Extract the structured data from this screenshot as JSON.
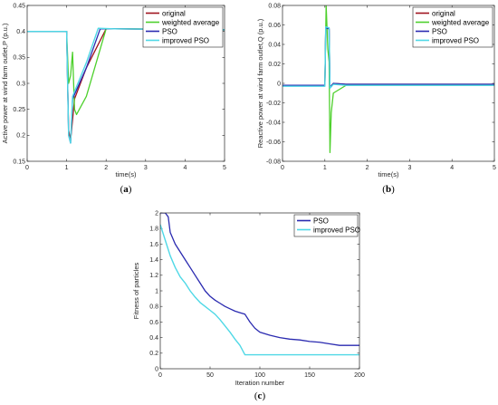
{
  "chart_data": [
    {
      "type": "line",
      "panel_label": "a",
      "xlabel": "time(s)",
      "ylabel": "Active power at wind farm outlet,P (p.u.)",
      "xlim": [
        0,
        5
      ],
      "ylim": [
        0.15,
        0.45
      ],
      "xticks": [
        "0",
        "1",
        "2",
        "3",
        "4",
        "5"
      ],
      "yticks": [
        "0.15",
        "0.2",
        "0.25",
        "0.3",
        "0.35",
        "0.4",
        "0.45"
      ],
      "legend_position": "top-right",
      "series": [
        {
          "name": "original",
          "color": "#a0141e",
          "x": [
            0,
            1.0,
            1.05,
            1.1,
            1.2,
            1.5,
            2.0,
            2.2,
            5
          ],
          "y": [
            0.4,
            0.4,
            0.21,
            0.19,
            0.27,
            0.33,
            0.405,
            0.405,
            0.403
          ]
        },
        {
          "name": "weighted average",
          "color": "#4dd02c",
          "x": [
            0,
            1.0,
            1.05,
            1.1,
            1.15,
            1.2,
            1.25,
            1.5,
            2.0,
            2.5,
            5
          ],
          "y": [
            0.4,
            0.4,
            0.3,
            0.315,
            0.36,
            0.25,
            0.24,
            0.275,
            0.405,
            0.405,
            0.403
          ]
        },
        {
          "name": "PSO",
          "color": "#2a2ab0",
          "x": [
            0,
            1.0,
            1.05,
            1.1,
            1.15,
            1.5,
            1.85,
            2.2,
            5
          ],
          "y": [
            0.4,
            0.4,
            0.2,
            0.185,
            0.27,
            0.33,
            0.405,
            0.405,
            0.403
          ]
        },
        {
          "name": "improved PSO",
          "color": "#4fd8e6",
          "x": [
            0,
            1.0,
            1.05,
            1.1,
            1.15,
            1.5,
            1.8,
            2.2,
            5
          ],
          "y": [
            0.4,
            0.4,
            0.2,
            0.185,
            0.275,
            0.34,
            0.406,
            0.405,
            0.403
          ]
        }
      ]
    },
    {
      "type": "line",
      "panel_label": "b",
      "xlabel": "time(s)",
      "ylabel": "Reactive power at wind farm outlet,Q (p.u.)",
      "xlim": [
        0,
        5
      ],
      "ylim": [
        -0.08,
        0.08
      ],
      "xticks": [
        "0",
        "1",
        "2",
        "3",
        "4",
        "5"
      ],
      "yticks": [
        "-0.08",
        "-0.06",
        "-0.04",
        "-0.02",
        "0",
        "0.02",
        "0.04",
        "0.06",
        "0.08"
      ],
      "legend_position": "top-right",
      "series": [
        {
          "name": "original",
          "color": "#a0141e",
          "x": [
            0,
            1.0,
            1.02,
            1.1,
            1.12,
            1.2,
            1.5,
            5
          ],
          "y": [
            -0.002,
            -0.002,
            0.057,
            0.056,
            -0.004,
            0.0,
            -0.001,
            -0.001
          ]
        },
        {
          "name": "weighted average",
          "color": "#4dd02c",
          "x": [
            0,
            1.0,
            1.03,
            1.07,
            1.1,
            1.12,
            1.15,
            1.2,
            1.5,
            5
          ],
          "y": [
            -0.002,
            -0.002,
            0.08,
            0.035,
            0.022,
            -0.071,
            -0.03,
            -0.01,
            -0.002,
            -0.002
          ]
        },
        {
          "name": "PSO",
          "color": "#2a2ab0",
          "x": [
            0,
            1.0,
            1.02,
            1.1,
            1.12,
            1.2,
            1.5,
            5
          ],
          "y": [
            -0.002,
            -0.002,
            0.057,
            0.056,
            -0.004,
            0.0,
            -0.001,
            -0.001
          ]
        },
        {
          "name": "improved PSO",
          "color": "#4fd8e6",
          "x": [
            0,
            1.0,
            1.02,
            1.1,
            1.12,
            1.2,
            1.5,
            5
          ],
          "y": [
            -0.003,
            -0.003,
            0.058,
            0.057,
            -0.005,
            -0.001,
            -0.002,
            -0.002
          ]
        }
      ]
    },
    {
      "type": "line",
      "panel_label": "c",
      "xlabel": "Iteration number",
      "ylabel": "Fitness of particles",
      "xlim": [
        0,
        200
      ],
      "ylim": [
        0,
        2
      ],
      "xticks": [
        "0",
        "50",
        "100",
        "150",
        "200"
      ],
      "yticks": [
        "0",
        "0.2",
        "0.4",
        "0.6",
        "0.8",
        "1",
        "1.2",
        "1.4",
        "1.6",
        "1.8",
        "2"
      ],
      "legend_position": "top-right",
      "series": [
        {
          "name": "PSO",
          "color": "#2a2ab0",
          "x": [
            0,
            5,
            8,
            10,
            15,
            20,
            25,
            30,
            35,
            40,
            45,
            50,
            55,
            60,
            65,
            70,
            75,
            80,
            85,
            90,
            95,
            100,
            110,
            120,
            130,
            140,
            150,
            160,
            170,
            180,
            190,
            200
          ],
          "y": [
            2.0,
            2.0,
            1.95,
            1.75,
            1.6,
            1.5,
            1.4,
            1.3,
            1.2,
            1.1,
            1.0,
            0.93,
            0.88,
            0.84,
            0.8,
            0.77,
            0.74,
            0.72,
            0.7,
            0.6,
            0.52,
            0.47,
            0.43,
            0.4,
            0.38,
            0.37,
            0.35,
            0.34,
            0.32,
            0.3,
            0.3,
            0.3
          ]
        },
        {
          "name": "improved PSO",
          "color": "#4fd8e6",
          "x": [
            0,
            5,
            10,
            15,
            20,
            25,
            30,
            35,
            40,
            45,
            50,
            55,
            60,
            65,
            70,
            75,
            80,
            85,
            90,
            100,
            120,
            150,
            200
          ],
          "y": [
            1.85,
            1.65,
            1.45,
            1.3,
            1.18,
            1.1,
            1.0,
            0.92,
            0.85,
            0.8,
            0.75,
            0.7,
            0.63,
            0.55,
            0.47,
            0.38,
            0.3,
            0.18,
            0.18,
            0.18,
            0.18,
            0.18,
            0.18
          ]
        }
      ]
    }
  ]
}
